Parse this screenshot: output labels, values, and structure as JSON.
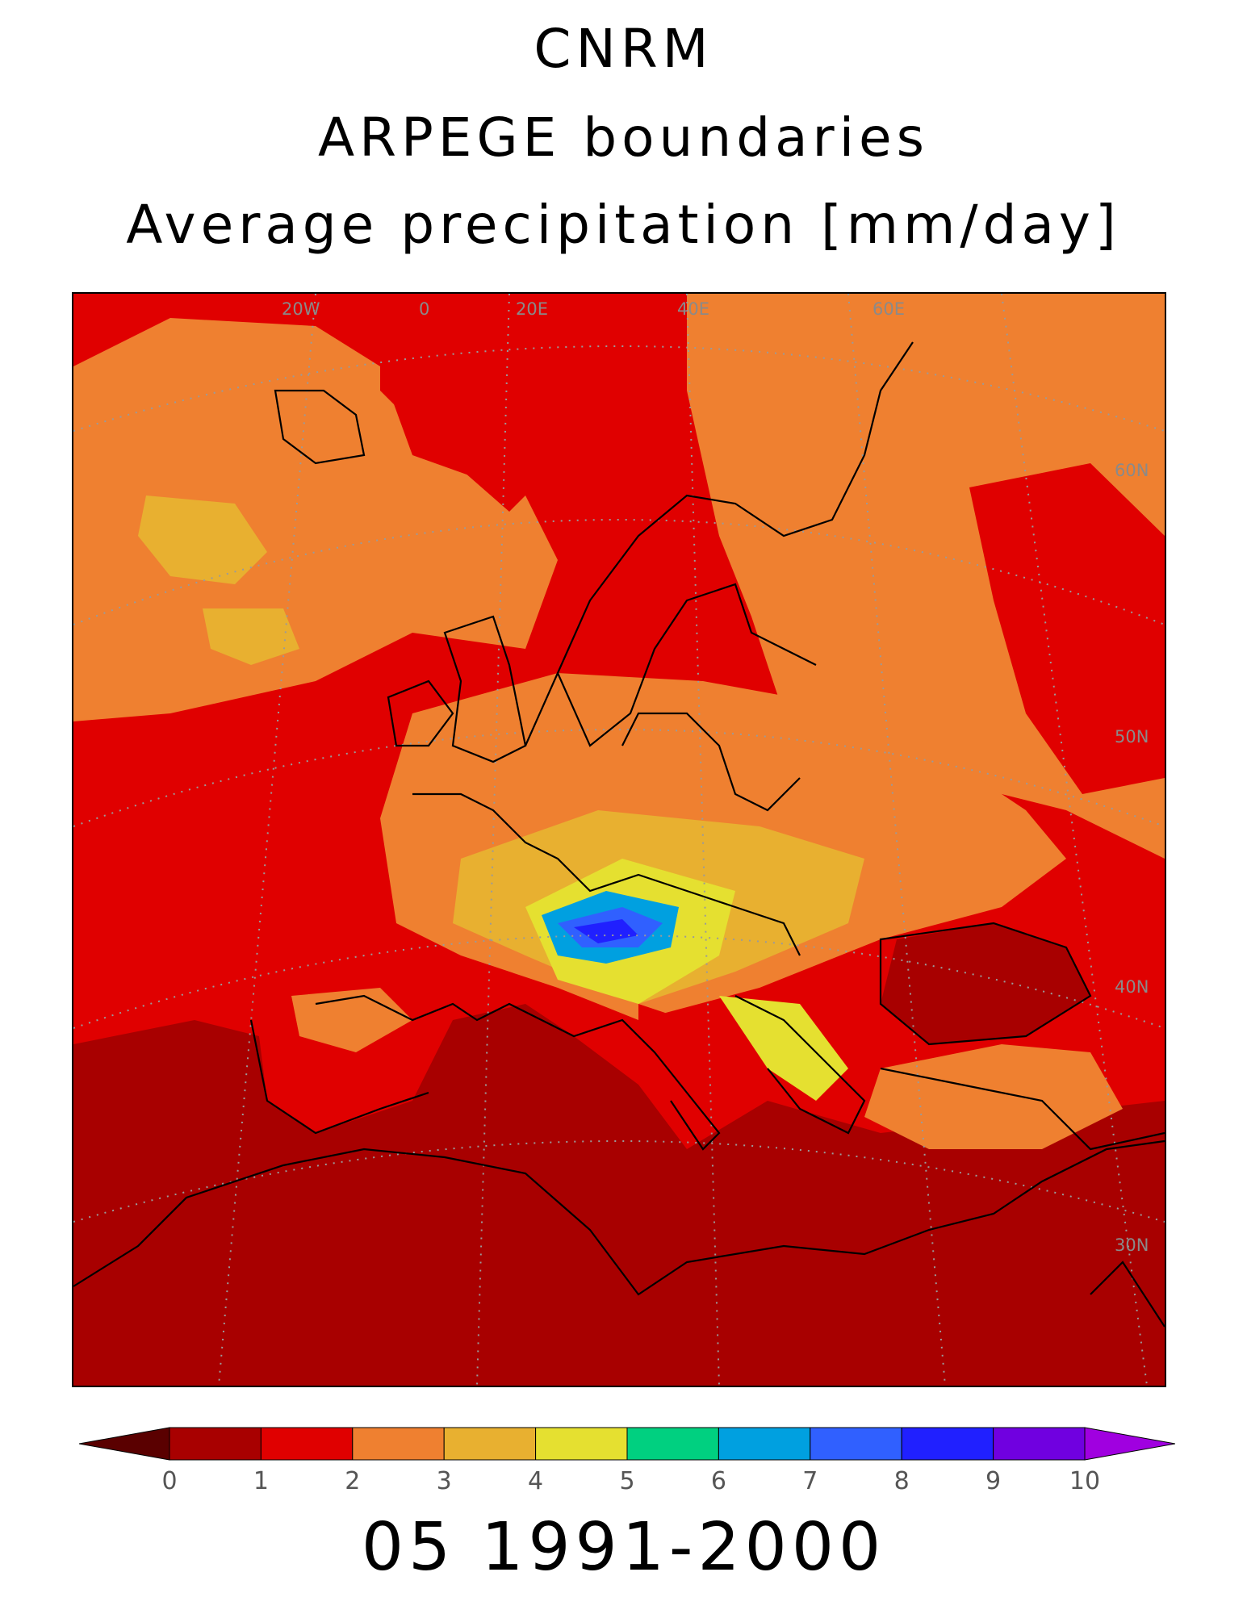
{
  "title": {
    "line1": "CNRM",
    "line2": "ARPEGE boundaries",
    "line3": "Average precipitation [mm/day]"
  },
  "map": {
    "graticule_labels": {
      "lon": [
        "20W",
        "0",
        "20E",
        "40E",
        "60E"
      ],
      "lat": [
        "60N",
        "50N",
        "40N",
        "30N"
      ]
    },
    "colors": {
      "ocean_south": "#a80000",
      "red": "#e00000",
      "orange": "#ef8030",
      "light_orange": "#e8b030",
      "yellow": "#e5e030",
      "green": "#00d080",
      "cyan": "#00a0e0",
      "blue": "#3060ff",
      "deep_blue": "#2020ff",
      "coast": "#000000",
      "grid": "#9a9a9a"
    }
  },
  "colorbar": {
    "ticks": [
      "0",
      "1",
      "2",
      "3",
      "4",
      "5",
      "6",
      "7",
      "8",
      "9",
      "10"
    ],
    "colors": [
      "#5a0000",
      "#a80000",
      "#e00000",
      "#ef8030",
      "#e8b030",
      "#e5e030",
      "#00d080",
      "#00a0e0",
      "#3060ff",
      "#2020ff",
      "#7000e0",
      "#a000e0"
    ]
  },
  "footer": "05 1991-2000"
}
